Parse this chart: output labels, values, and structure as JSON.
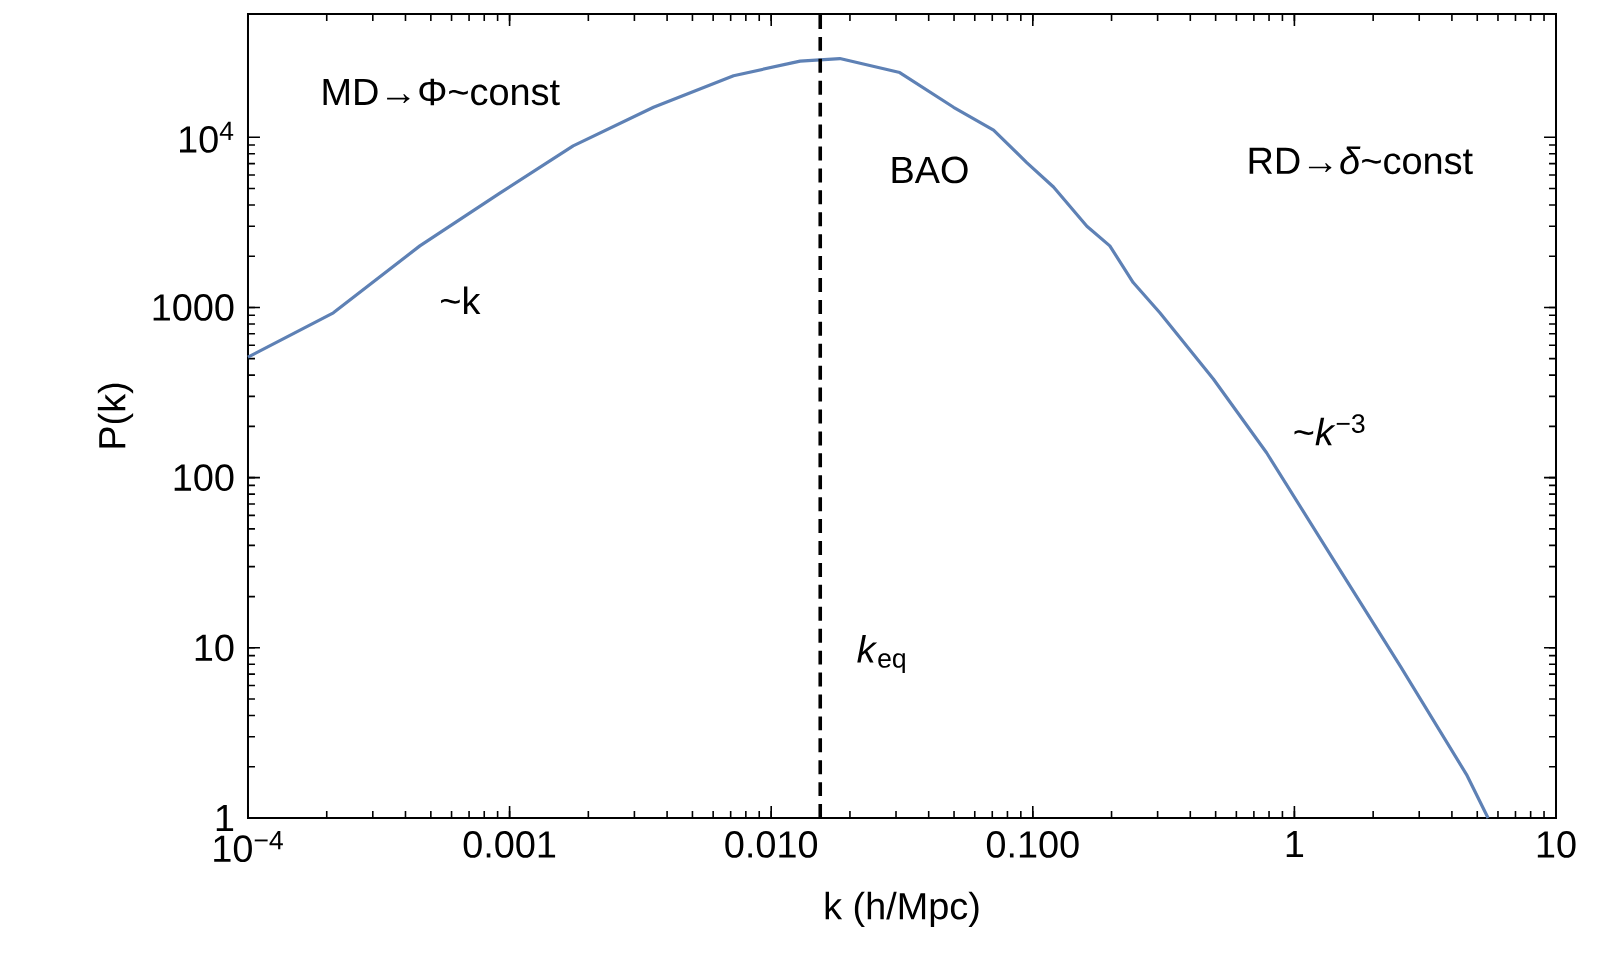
{
  "chart_data": {
    "type": "line",
    "xlabel": "k (h/Mpc)",
    "ylabel": "P(k)",
    "log": "xy",
    "xlim": [
      0.0001,
      10
    ],
    "ylim": [
      1,
      53000
    ],
    "xticks": [
      {
        "value": 0.0001,
        "label": "10$^{−4}$"
      },
      0.001,
      {
        "value": 0.01,
        "label": "0.010"
      },
      {
        "value": 0.1,
        "label": "0.100"
      },
      1,
      10
    ],
    "yticks": [
      1,
      10,
      100,
      1000,
      {
        "value": 10000,
        "label": "10$^{4}$"
      }
    ],
    "marker": "none",
    "line_style": "solid",
    "series": [
      {
        "color": "#5e81b5",
        "x": [
          0.0001,
          0.000212,
          0.000454,
          0.000918,
          0.00175,
          0.00355,
          0.00718,
          0.0129,
          0.0183,
          0.031,
          0.0498,
          0.0708,
          0.0948,
          0.12,
          0.161,
          0.197,
          0.242,
          0.306,
          0.49,
          0.783,
          1.41,
          2.54,
          4.55,
          5.5
        ],
        "values": [
          510,
          930,
          2300,
          4700,
          8900,
          15000,
          23000,
          28000,
          29000,
          24000,
          15000,
          11000,
          7100,
          5100,
          3000,
          2300,
          1400,
          930,
          380,
          140,
          33,
          7.8,
          1.8,
          1
        ]
      }
    ],
    "ref_lines": [
      {
        "axis": "x",
        "value": 0.0154,
        "label": "*k*$_{eq}$",
        "color": "#000000",
        "line_style": "dashed"
      }
    ],
    "annotations": [
      "MD→Φ~const",
      "~k",
      "BAO",
      "RD→*δ*~const",
      "~*k*$^{−3}$"
    ]
  }
}
